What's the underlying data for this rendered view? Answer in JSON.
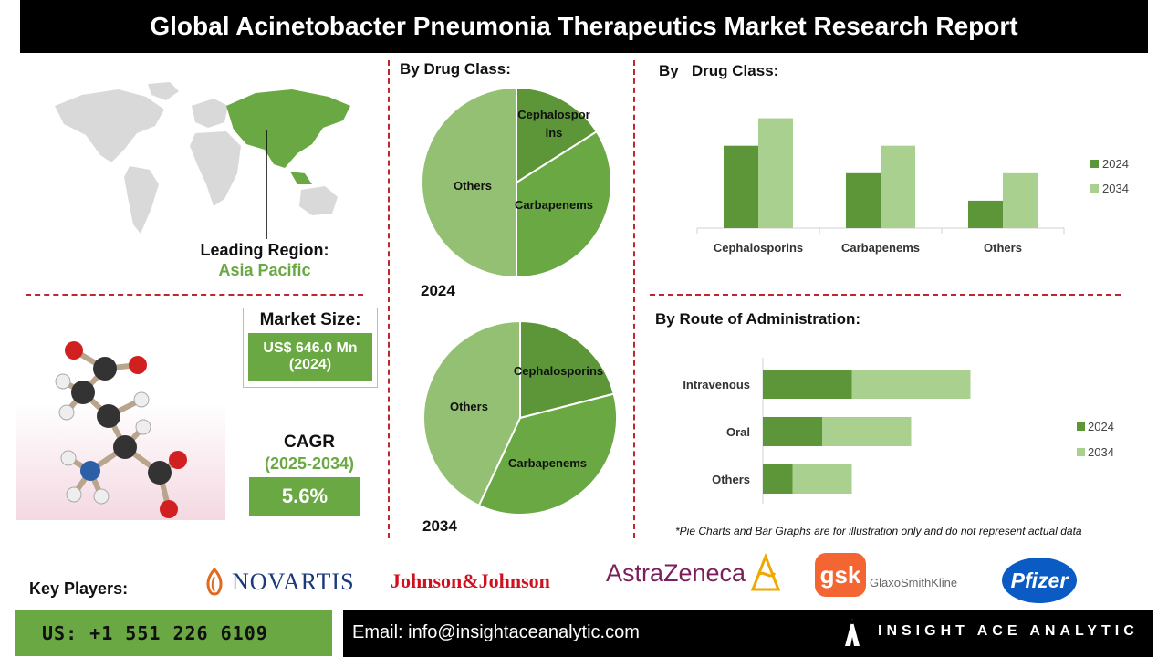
{
  "title": "Global Acinetobacter Pneumonia Therapeutics Market Research Report",
  "region": {
    "label": "Leading Region:",
    "value": "Asia Pacific"
  },
  "market_size": {
    "label": "Market Size:",
    "value": "US$ 646.0 Mn",
    "year": "(2024)"
  },
  "cagr": {
    "label": "CAGR",
    "period": "(2025-2034)",
    "value": "5.6%"
  },
  "pie_section": {
    "heading": "By Drug Class:"
  },
  "bar_section": {
    "heading": "By   Drug Class:"
  },
  "route_section": {
    "heading": "By Route of Administration:"
  },
  "disclaimer": "*Pie Charts and Bar Graphs are for illustration only and do not represent actual data",
  "key_players": {
    "label": "Key Players:",
    "logos": [
      "NOVARTIS",
      "Johnson&Johnson",
      "AstraZeneca",
      "gsk",
      "GlaxoSmithKline",
      "Pfizer"
    ]
  },
  "footer": {
    "phone": "US: +1 551 226 6109",
    "email": "Email: info@insightaceanalytic.com",
    "brand": "INSIGHT ACE ANALYTIC"
  },
  "colors": {
    "dark_green": "#5d9638",
    "mid_green": "#6aa843",
    "light_green": "#93c072",
    "pale_green": "#a9d08e",
    "accent_red": "#c0262d",
    "region_green": "#6aa843"
  },
  "chart_data": [
    {
      "type": "pie",
      "year_label": "2024",
      "slices": [
        {
          "label": "Cephalospor ins",
          "value": 16,
          "color": "#5d9638"
        },
        {
          "label": "Carbapenems",
          "value": 34,
          "color": "#6aa843"
        },
        {
          "label": "Others",
          "value": 50,
          "color": "#93c072"
        }
      ]
    },
    {
      "type": "pie",
      "year_label": "2034",
      "slices": [
        {
          "label": "Cephalosporins",
          "value": 21,
          "color": "#5d9638"
        },
        {
          "label": "Carbapenems",
          "value": 36,
          "color": "#6aa843"
        },
        {
          "label": "Others",
          "value": 43,
          "color": "#93c072"
        }
      ]
    },
    {
      "type": "bar",
      "categories": [
        "Cephalosporins",
        "Carbapenems",
        "Others"
      ],
      "series": [
        {
          "name": "2024",
          "values": [
            3,
            2,
            1
          ],
          "color": "#5d9638"
        },
        {
          "name": "2034",
          "values": [
            4,
            3,
            2
          ],
          "color": "#a9d08e"
        }
      ],
      "ylim": [
        0,
        4
      ]
    },
    {
      "type": "bar",
      "orientation": "horizontal",
      "stacked": true,
      "categories": [
        "Intravenous",
        "Oral",
        "Others"
      ],
      "series": [
        {
          "name": "2024",
          "values": [
            3,
            2,
            1
          ],
          "color": "#5d9638"
        },
        {
          "name": "2034",
          "values": [
            4,
            3,
            2
          ],
          "color": "#a9d08e"
        }
      ],
      "xlim": [
        0,
        7
      ]
    }
  ]
}
